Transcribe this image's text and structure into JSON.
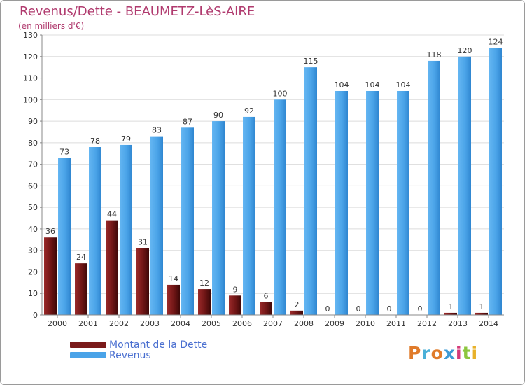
{
  "title": "Revenus/Dette - BEAUMETZ-LèS-AIRE",
  "subtitle": "(en milliers d'€)",
  "logo": "Proxiti",
  "colors": {
    "debt": "#7a1a1a",
    "revenue": "#4aa3e8",
    "title": "#b03a6e",
    "legend_text": "#4a6fd0",
    "logo": [
      "#e07b2a",
      "#4ab0d8",
      "#e07b2a",
      "#3e9bd6",
      "#d43a7a",
      "#8cc63e",
      "#e8b12a"
    ]
  },
  "chart_data": {
    "type": "bar",
    "categories": [
      "2000",
      "2001",
      "2002",
      "2003",
      "2004",
      "2005",
      "2006",
      "2007",
      "2008",
      "2009",
      "2010",
      "2011",
      "2012",
      "2013",
      "2014"
    ],
    "series": [
      {
        "name": "Montant de la Dette",
        "values": [
          36,
          24,
          44,
          31,
          14,
          12,
          9,
          6,
          2,
          0,
          0,
          0,
          0,
          1,
          1
        ]
      },
      {
        "name": "Revenus",
        "values": [
          73,
          78,
          79,
          83,
          87,
          90,
          92,
          100,
          115,
          104,
          104,
          104,
          118,
          120,
          124
        ]
      }
    ],
    "ylim": [
      0,
      130
    ],
    "yticks": [
      0,
      10,
      20,
      30,
      40,
      50,
      60,
      70,
      80,
      90,
      100,
      110,
      120,
      130
    ],
    "grid": true,
    "legend_position": "bottom-left"
  }
}
